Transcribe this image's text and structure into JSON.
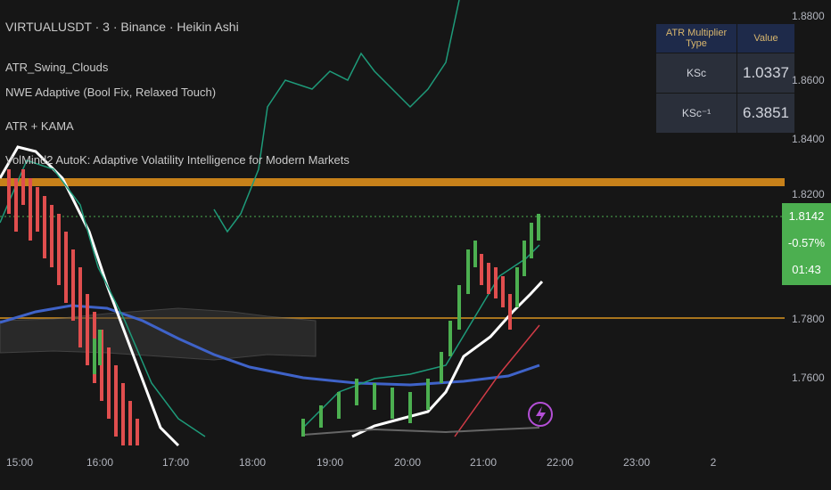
{
  "header": {
    "symbol": "VIRTUALUSDT · 3 · Binance · Heikin Ashi",
    "indicators": [
      "ATR_Swing_Clouds",
      "NWE Adaptive (Bool Fix, Relaxed Touch)",
      "ATR + KAMA",
      "VolMind2 AutoK: Adaptive Volatility Intelligence for Modern Markets"
    ]
  },
  "table": {
    "headers": [
      "ATR Multiplier Type",
      "Value"
    ],
    "rows": [
      [
        "KSc",
        "1.0337"
      ],
      [
        "KSc⁻¹",
        "6.3851"
      ]
    ]
  },
  "price_axis": [
    "1.8800",
    "1.8600",
    "1.8400",
    "1.8200",
    "1.7800",
    "1.7600"
  ],
  "price_label": {
    "price": "1.8142",
    "change": "-0.57%",
    "countdown": "01:43"
  },
  "time_axis": [
    "15:00",
    "16:00",
    "17:00",
    "18:00",
    "19:00",
    "20:00",
    "21:00",
    "22:00",
    "23:00",
    "2"
  ]
}
